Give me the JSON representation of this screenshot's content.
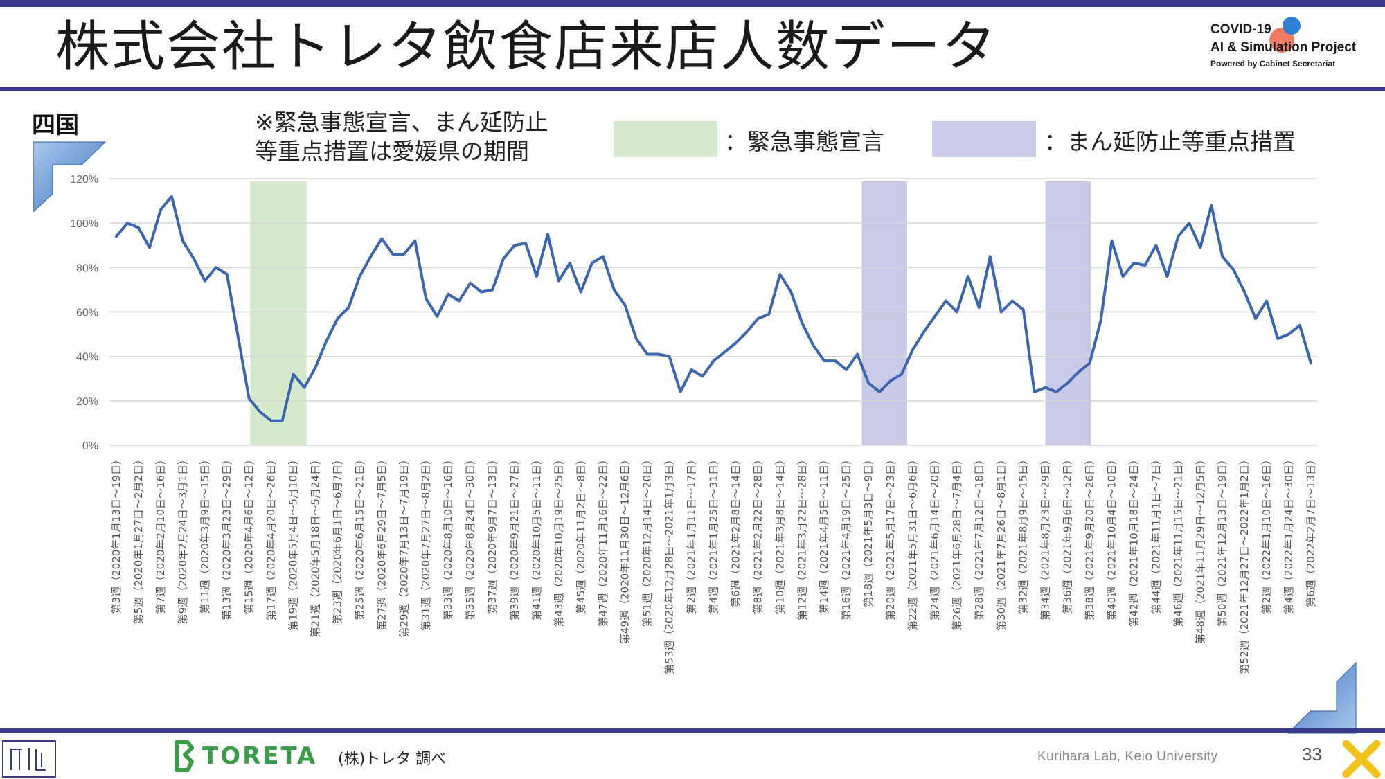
{
  "title": "株式会社トレタ飲食店来店人数データ",
  "project": {
    "line1": "COVID-19",
    "line2": "AI & Simulation Project",
    "line3": "Powered by Cabinet Secretariat"
  },
  "region": "四国",
  "note": {
    "line1": "※緊急事態宣言、まん延防止",
    "line2": "等重点措置は愛媛県の期間"
  },
  "legend": {
    "emergency_label": "：緊急事態宣言",
    "emergency_color": "#d4e8cc",
    "priority_label": "：まん延防止等重点措置",
    "priority_color": "#c9c9e8"
  },
  "footer": {
    "toreta": "TORETA",
    "source": "(株)トレタ 調べ",
    "lab": "Kurihara Lab, Keio University",
    "page": "33"
  },
  "chart_data": {
    "type": "line",
    "title": "",
    "xlabel": "",
    "ylabel": "",
    "ylim": [
      0,
      120
    ],
    "y_ticks": [
      "0%",
      "20%",
      "40%",
      "60%",
      "80%",
      "100%",
      "120%"
    ],
    "grid": true,
    "line_color": "#3a66b0",
    "x_labels": [
      "第3週（2020年1月13日～19日）",
      "第5週（2020年1月27日～2月2日）",
      "第7週（2020年2月10日～16日）",
      "第9週（2020年2月24日～3月1日）",
      "第11週（2020年3月9日～15日）",
      "第13週（2020年3月23日～29日）",
      "第15週（2020年4月6日～12日）",
      "第17週（2020年4月20日～26日）",
      "第19週（2020年5月4日～5月10日）",
      "第21週（2020年5月18日～5月24日）",
      "第23週（2020年6月1日～6月7日）",
      "第25週（2020年6月15日～21日）",
      "第27週（2020年6月29日～7月5日）",
      "第29週（2020年7月13日～7月19日）",
      "第31週（2020年7月27日～8月2日）",
      "第33週（2020年8月10日～16日）",
      "第35週（2020年8月24日～30日）",
      "第37週（2020年9月7日～13日）",
      "第39週（2020年9月21日～27日）",
      "第41週（2020年10月5日～11日）",
      "第43週（2020年10月19日～25日）",
      "第45週（2020年11月2日～8日）",
      "第47週（2020年11月16日～22日）",
      "第49週（2020年11月30日～12月6日）",
      "第51週（2020年12月14日～20日）",
      "第53週（2020年12月28日～2021年1月3日）",
      "第2週（2021年1月11日～17日）",
      "第4週（2021年1月25日～31日）",
      "第6週（2021年2月8日～14日）",
      "第8週（2021年2月22日～28日）",
      "第10週（2021年3月8日～14日）",
      "第12週（2021年3月22日～28日）",
      "第14週（2021年4月5日～11日）",
      "第16週（2021年4月19日～25日）",
      "第18週（2021年5月3日～9日）",
      "第20週（2021年5月17日～23日）",
      "第22週（2021年5月31日～6月6日）",
      "第24週（2021年6月14日～20日）",
      "第26週（2021年6月28日～7月4日）",
      "第28週（2021年7月12日～18日）",
      "第30週（2021年7月26日～8月1日）",
      "第32週（2021年8月9日～15日）",
      "第34週（2021年8月23日～29日）",
      "第36週（2021年9月6日～12日）",
      "第38週（2021年9月20日～26日）",
      "第40週（2021年10月4日～10日）",
      "第42週（2021年10月18日～24日）",
      "第44週（2021年11月1日～7日）",
      "第46週（2021年11月15日～21日）",
      "第48週（2021年11月29日～12月5日）",
      "第50週（2021年12月13日～19日）",
      "第52週（2021年12月27日～2022年1月2日）",
      "第2週（2022年1月10日～16日）",
      "第4週（2022年1月24日～30日）",
      "第6週（2022年2月7日～13日）"
    ],
    "values": [
      94,
      100,
      98,
      89,
      106,
      112,
      92,
      84,
      74,
      80,
      77,
      49,
      21,
      15,
      11,
      11,
      32,
      26,
      35,
      47,
      57,
      62,
      76,
      85,
      93,
      86,
      86,
      92,
      66,
      58,
      68,
      65,
      73,
      69,
      70,
      84,
      90,
      91,
      76,
      95,
      74,
      82,
      69,
      82,
      85,
      70,
      63,
      48,
      41,
      41,
      40,
      24,
      34,
      31,
      38,
      42,
      46,
      51,
      57,
      59,
      77,
      69,
      55,
      45,
      38,
      38,
      34,
      41,
      28,
      24,
      29,
      32,
      43,
      51,
      58,
      65,
      60,
      76,
      62,
      85,
      60,
      65,
      61,
      24,
      26,
      24,
      28,
      33,
      37,
      56,
      92,
      76,
      82,
      81,
      90,
      76,
      94,
      100,
      89,
      108,
      85,
      79,
      69,
      57,
      65,
      48,
      50,
      54,
      37
    ],
    "shaded_periods": [
      {
        "type": "emergency",
        "label": "緊急事態宣言",
        "from_week_index": 12.1,
        "to_week_index": 17.2
      },
      {
        "type": "priority",
        "label": "まん延防止等重点措置",
        "from_week_index": 67.4,
        "to_week_index": 71.5
      },
      {
        "type": "priority",
        "label": "まん延防止等重点措置",
        "from_week_index": 84.0,
        "to_week_index": 88.1
      }
    ]
  }
}
